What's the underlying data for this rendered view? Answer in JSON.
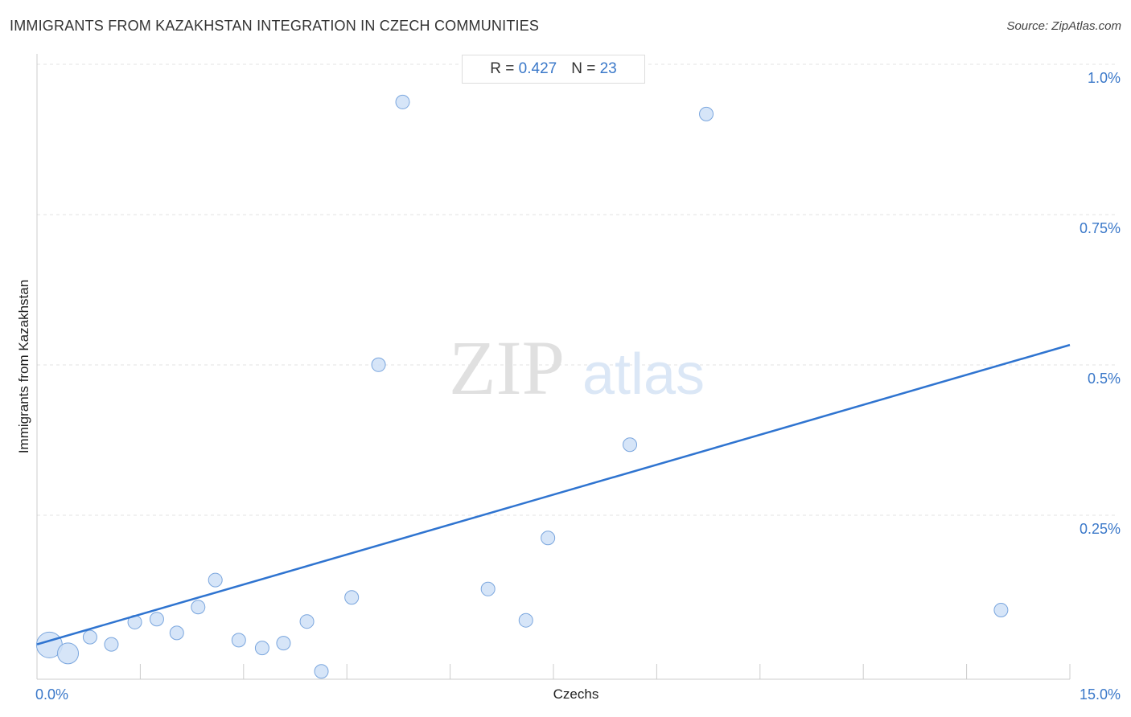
{
  "header": {
    "title": "IMMIGRANTS FROM KAZAKHSTAN INTEGRATION IN CZECH COMMUNITIES",
    "source": "Source: ZipAtlas.com"
  },
  "stats": {
    "r_label": "R = ",
    "r_value": "0.427",
    "n_label": "N = ",
    "n_value": "23"
  },
  "watermark": {
    "zip": "ZIP",
    "atlas": "atlas"
  },
  "chart_data": {
    "type": "scatter",
    "xlabel": "Czechs",
    "ylabel": "Immigrants from Kazakhstan",
    "xlim": [
      0,
      15
    ],
    "ylim": [
      0,
      1.0
    ],
    "x_tick_labels": [
      {
        "value": 0,
        "label": "0.0%"
      },
      {
        "value": 15,
        "label": "15.0%"
      }
    ],
    "y_tick_labels": [
      {
        "value": 0.25,
        "label": "0.25%"
      },
      {
        "value": 0.5,
        "label": "0.5%"
      },
      {
        "value": 0.75,
        "label": "0.75%"
      },
      {
        "value": 1.0,
        "label": "1.0%"
      }
    ],
    "grid": "horizontal dashed",
    "point_color": "#cfe0f7",
    "point_stroke": "#7aa6de",
    "line_color": "#2f74d0",
    "points": [
      {
        "x": 0.18,
        "y": 0.057,
        "size": "large"
      },
      {
        "x": 0.45,
        "y": 0.043,
        "size": "medium"
      },
      {
        "x": 0.77,
        "y": 0.07
      },
      {
        "x": 1.08,
        "y": 0.058
      },
      {
        "x": 1.42,
        "y": 0.095
      },
      {
        "x": 1.74,
        "y": 0.1
      },
      {
        "x": 2.03,
        "y": 0.077
      },
      {
        "x": 2.34,
        "y": 0.12
      },
      {
        "x": 2.59,
        "y": 0.165
      },
      {
        "x": 2.93,
        "y": 0.065
      },
      {
        "x": 3.27,
        "y": 0.052
      },
      {
        "x": 3.58,
        "y": 0.06
      },
      {
        "x": 3.92,
        "y": 0.096
      },
      {
        "x": 4.13,
        "y": 0.013
      },
      {
        "x": 4.57,
        "y": 0.136
      },
      {
        "x": 4.96,
        "y": 0.523
      },
      {
        "x": 5.31,
        "y": 0.96
      },
      {
        "x": 6.55,
        "y": 0.15
      },
      {
        "x": 7.1,
        "y": 0.098
      },
      {
        "x": 7.42,
        "y": 0.235
      },
      {
        "x": 8.61,
        "y": 0.39
      },
      {
        "x": 9.72,
        "y": 0.94
      },
      {
        "x": 14.0,
        "y": 0.115
      }
    ],
    "trendline": {
      "x": [
        0,
        15
      ],
      "y": [
        0.058,
        0.556
      ]
    }
  }
}
